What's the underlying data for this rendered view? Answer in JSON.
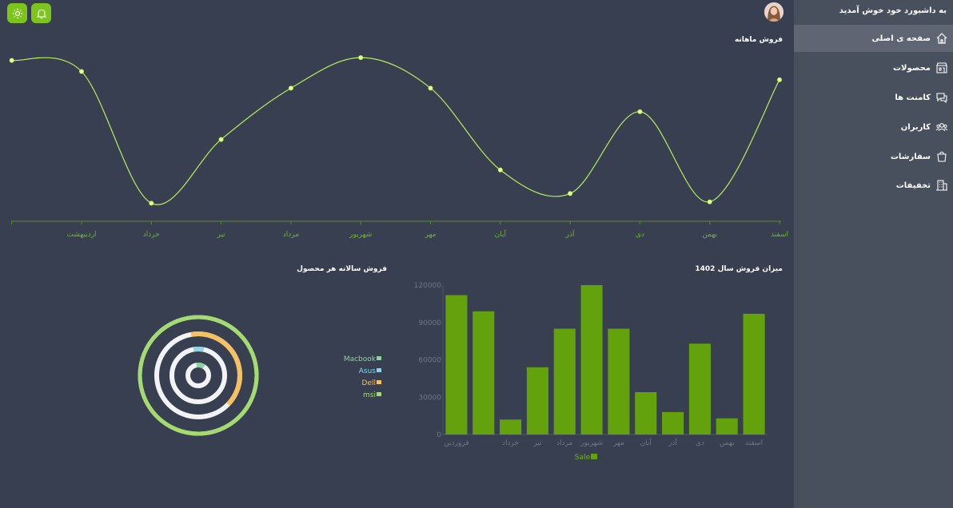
{
  "sidebar": {
    "welcome": "به داشبورد خود خوش آمدید",
    "items": [
      {
        "label": "صفحه ی اصلی",
        "icon": "home-icon",
        "active": true
      },
      {
        "label": "محصولات",
        "icon": "store-icon",
        "active": false
      },
      {
        "label": "کامنت ها",
        "icon": "comments-icon",
        "active": false
      },
      {
        "label": "کاربران",
        "icon": "users-icon",
        "active": false
      },
      {
        "label": "سفارشات",
        "icon": "bag-icon",
        "active": false
      },
      {
        "label": "تخفیفات",
        "icon": "building-icon",
        "active": false
      }
    ]
  },
  "header": {
    "theme_icon": "sun-icon",
    "notification_icon": "bell-icon"
  },
  "colors": {
    "accent": "#7cc61c",
    "line": "#b6ee5a",
    "bar": "#63a20c",
    "background": "#373f50",
    "sidebar": "#484f5d"
  },
  "chart_data": [
    {
      "type": "line",
      "title": "فروش ماهانه",
      "categories": [
        "اسفند",
        "بهمن",
        "دی",
        "آذر",
        "آبان",
        "مهر",
        "شهریور",
        "مرداد",
        "تیر",
        "خرداد",
        "اردیبهشت",
        ""
      ],
      "values": [
        102,
        14,
        79,
        20,
        37,
        96,
        118,
        96,
        59,
        13,
        108,
        116
      ],
      "ylim": [
        0,
        125
      ],
      "grid": false
    },
    {
      "type": "bar",
      "title": "میزان فروش سال 1402",
      "categories": [
        "اسفند",
        "بهمن",
        "دی",
        "آذر",
        "آبان",
        "مهر",
        "شهریور",
        "مرداد",
        "تیر",
        "خرداد",
        "",
        "فروردین"
      ],
      "series": [
        {
          "name": "Sale",
          "values": [
            97000,
            13000,
            73000,
            18000,
            34000,
            85000,
            120000,
            85000,
            54000,
            12000,
            99000,
            112000
          ]
        }
      ],
      "yticks": [
        "0",
        "30000",
        "60000",
        "90000",
        "120000"
      ],
      "ylim": [
        0,
        120000
      ],
      "legend": "bottom"
    },
    {
      "type": "pie",
      "title": "فروش سالانه هر محصول",
      "series": [
        {
          "name": "msi",
          "value": 100,
          "color": "#a3db6e"
        },
        {
          "name": "Dell",
          "value": 40,
          "color": "#f6c160"
        },
        {
          "name": "Asus",
          "value": 6,
          "color": "#8fd3e8"
        },
        {
          "name": "Macbook",
          "value": 12,
          "color": "#8fd19e"
        }
      ],
      "legend": "right"
    }
  ]
}
